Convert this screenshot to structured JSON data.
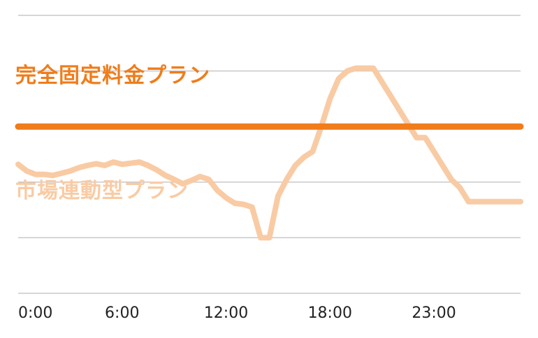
{
  "chart_data": {
    "type": "line",
    "title": "",
    "xlabel": "",
    "ylabel": "",
    "x_tick_labels": [
      "0:00",
      "6:00",
      "12:00",
      "18:00",
      "23:00"
    ],
    "x_tick_positions": [
      0,
      6,
      12,
      18,
      24
    ],
    "xlim": [
      0,
      29
    ],
    "ylim": [
      0,
      5
    ],
    "grid": true,
    "gridlines_y": [
      1,
      2,
      3,
      4,
      5
    ],
    "series": [
      {
        "name": "完全固定料金プラン",
        "color": "#f07c1a",
        "x": [
          0,
          29
        ],
        "y": [
          3.0,
          3.0
        ]
      },
      {
        "name": "市場連動型プラン",
        "color": "#f9cba4",
        "x": [
          0,
          0.5,
          1.0,
          1.5,
          2.0,
          2.5,
          3.0,
          3.5,
          4.0,
          4.5,
          5.0,
          5.5,
          6.0,
          6.5,
          7.0,
          7.5,
          8.0,
          8.5,
          9.0,
          9.5,
          10.0,
          10.5,
          11.0,
          11.5,
          12.0,
          12.5,
          13.0,
          13.5,
          14.0,
          14.5,
          15.0,
          15.5,
          16.0,
          16.5,
          17.0,
          17.5,
          18.0,
          18.5,
          19.0,
          19.5,
          20.0,
          20.5,
          21.0,
          21.5,
          22.0,
          22.5,
          23.0,
          23.5,
          24.0,
          24.5,
          25.0,
          25.5,
          26.0,
          26.5,
          27.0,
          27.5,
          28.0,
          28.5,
          29.0
        ],
        "y": [
          2.32,
          2.2,
          2.14,
          2.14,
          2.12,
          2.16,
          2.2,
          2.26,
          2.3,
          2.33,
          2.3,
          2.36,
          2.32,
          2.34,
          2.36,
          2.3,
          2.22,
          2.12,
          2.05,
          1.97,
          2.03,
          2.1,
          2.05,
          1.85,
          1.72,
          1.62,
          1.6,
          1.55,
          1.0,
          1.0,
          1.75,
          2.05,
          2.3,
          2.45,
          2.55,
          3.0,
          3.5,
          3.86,
          4.0,
          4.05,
          4.05,
          4.05,
          3.8,
          3.55,
          3.3,
          3.05,
          2.8,
          2.8,
          2.55,
          2.3,
          2.05,
          1.9,
          1.65,
          1.65,
          1.65,
          1.65,
          1.65,
          1.65,
          1.65
        ]
      }
    ],
    "legend_placement": "inline"
  }
}
